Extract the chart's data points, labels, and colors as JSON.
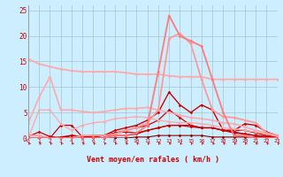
{
  "x": [
    0,
    1,
    2,
    3,
    4,
    5,
    6,
    7,
    8,
    9,
    10,
    11,
    12,
    13,
    14,
    15,
    16,
    17,
    18,
    19,
    20,
    21,
    22,
    23
  ],
  "lines": [
    {
      "y": [
        0.0,
        0.0,
        0.0,
        0.0,
        0.0,
        0.0,
        0.0,
        0.0,
        0.0,
        0.0,
        0.2,
        0.2,
        0.5,
        0.5,
        0.5,
        0.5,
        0.5,
        0.2,
        0.2,
        0.2,
        0.2,
        0.2,
        0.2,
        0.2
      ],
      "color": "#880000",
      "alpha": 1.0,
      "lw": 0.8
    },
    {
      "y": [
        0.3,
        1.2,
        0.3,
        0.0,
        0.5,
        0.3,
        0.2,
        0.5,
        0.5,
        0.5,
        0.8,
        1.5,
        2.0,
        2.5,
        2.5,
        2.5,
        2.0,
        2.0,
        1.5,
        1.5,
        1.5,
        1.0,
        0.5,
        0.2
      ],
      "color": "#cc0000",
      "alpha": 1.0,
      "lw": 0.9
    },
    {
      "y": [
        0.0,
        0.0,
        0.0,
        2.5,
        2.5,
        0.2,
        0.2,
        0.5,
        1.0,
        1.2,
        1.0,
        1.5,
        2.0,
        2.5,
        2.5,
        2.2,
        2.0,
        2.0,
        1.5,
        1.0,
        0.8,
        0.5,
        0.2,
        0.0
      ],
      "color": "#cc0000",
      "alpha": 1.0,
      "lw": 0.9
    },
    {
      "y": [
        0.0,
        0.0,
        0.0,
        0.0,
        0.5,
        0.3,
        0.5,
        0.5,
        1.0,
        1.5,
        2.0,
        2.5,
        3.5,
        5.5,
        4.0,
        2.5,
        2.0,
        2.0,
        1.5,
        1.2,
        0.8,
        0.5,
        0.3,
        0.2
      ],
      "color": "#cc0000",
      "alpha": 1.0,
      "lw": 0.9
    },
    {
      "y": [
        0.0,
        0.0,
        0.0,
        0.2,
        0.5,
        0.2,
        0.5,
        0.5,
        1.5,
        2.0,
        2.5,
        3.5,
        5.0,
        9.0,
        6.5,
        5.0,
        6.5,
        5.5,
        1.5,
        1.5,
        2.8,
        2.5,
        1.2,
        0.5
      ],
      "color": "#cc0000",
      "alpha": 1.0,
      "lw": 1.0
    },
    {
      "y": [
        3.0,
        8.0,
        12.0,
        5.5,
        5.5,
        5.2,
        5.0,
        5.2,
        5.5,
        5.8,
        5.8,
        6.0,
        5.5,
        5.0,
        4.5,
        4.0,
        3.8,
        3.5,
        3.0,
        2.8,
        2.2,
        1.5,
        1.0,
        0.5
      ],
      "color": "#ffaaaa",
      "alpha": 1.0,
      "lw": 1.2
    },
    {
      "y": [
        0.0,
        5.5,
        5.5,
        2.8,
        1.5,
        2.5,
        3.0,
        3.2,
        3.8,
        4.0,
        4.2,
        4.0,
        3.5,
        3.2,
        3.0,
        3.0,
        2.8,
        2.5,
        2.0,
        1.8,
        1.5,
        1.2,
        0.8,
        0.3
      ],
      "color": "#ffaaaa",
      "alpha": 1.0,
      "lw": 1.0
    },
    {
      "y": [
        15.5,
        14.5,
        14.0,
        13.5,
        13.2,
        13.0,
        13.0,
        13.0,
        13.0,
        12.8,
        12.5,
        12.5,
        12.5,
        12.2,
        12.0,
        12.0,
        12.0,
        11.5,
        11.5,
        11.5,
        11.5,
        11.5,
        11.5,
        11.5
      ],
      "color": "#ffaaaa",
      "alpha": 1.0,
      "lw": 1.3
    },
    {
      "y": [
        0.5,
        0.5,
        0.0,
        0.0,
        0.0,
        0.5,
        0.5,
        0.5,
        0.8,
        1.5,
        2.0,
        3.0,
        5.5,
        19.5,
        20.5,
        18.5,
        11.5,
        5.5,
        4.2,
        4.0,
        3.5,
        3.0,
        1.0,
        0.5
      ],
      "color": "#ff9999",
      "alpha": 1.0,
      "lw": 1.3
    },
    {
      "y": [
        0.0,
        0.0,
        0.0,
        0.0,
        0.0,
        0.0,
        0.0,
        0.0,
        0.5,
        0.5,
        1.0,
        2.5,
        13.0,
        24.0,
        20.0,
        19.0,
        18.0,
        11.5,
        5.0,
        0.5,
        0.5,
        0.0,
        0.0,
        0.0
      ],
      "color": "#ff7777",
      "alpha": 0.9,
      "lw": 1.4
    }
  ],
  "ylim": [
    0,
    26
  ],
  "xlim": [
    0,
    23
  ],
  "yticks": [
    0,
    5,
    10,
    15,
    20,
    25
  ],
  "xticks": [
    0,
    1,
    2,
    3,
    4,
    5,
    6,
    7,
    8,
    9,
    10,
    11,
    12,
    13,
    14,
    15,
    16,
    17,
    18,
    19,
    20,
    21,
    22,
    23
  ],
  "xlabel": "Vent moyen/en rafales ( km/h )",
  "bg_color": "#cceeff",
  "grid_color": "#99bbcc",
  "tick_color": "#cc0000",
  "label_color": "#cc0000"
}
